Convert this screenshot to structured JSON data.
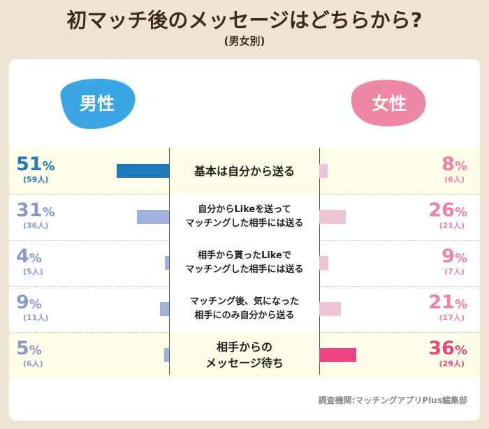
{
  "chart_data": {
    "type": "bar",
    "title": "初マッチ後のメッセージはどちらから?",
    "subtitle": "(男女別)",
    "categories": [
      [
        "基本は自分から送る"
      ],
      [
        "自分からLikeを送って",
        "マッチングした相手には送る"
      ],
      [
        "相手から貰ったLikeで",
        "マッチングした相手には送る"
      ],
      [
        "マッチング後、気になった",
        "相手にのみ自分から送る"
      ],
      [
        "相手からの",
        "メッセージ待ち"
      ]
    ],
    "series": [
      {
        "name": "男性",
        "values": [
          51,
          31,
          4,
          9,
          5
        ],
        "counts": [
          "(59人)",
          "(36人)",
          "(5人)",
          "(11人)",
          "(6人)"
        ],
        "highlight": 0
      },
      {
        "name": "女性",
        "values": [
          8,
          26,
          9,
          21,
          36
        ],
        "counts": [
          "(6人)",
          "(21人)",
          "(7人)",
          "(17人)",
          "(29人)"
        ],
        "highlight": 4
      }
    ],
    "unit": "%",
    "colors": {
      "male_label": "#3ba6e4",
      "male_bar_main": "#1e78bb",
      "male_bar": "#9fb1dc",
      "male_text_main": "#1e78bb",
      "male_text": "#8b98ca",
      "female_label": "#ee87a6",
      "female_bar_main": "#ef4383",
      "female_bar": "#edc3d6",
      "female_text_main": "#e8457e",
      "female_text": "#ee7fa8"
    },
    "source": "調査機関:マッチングアプリPlus編集部"
  }
}
